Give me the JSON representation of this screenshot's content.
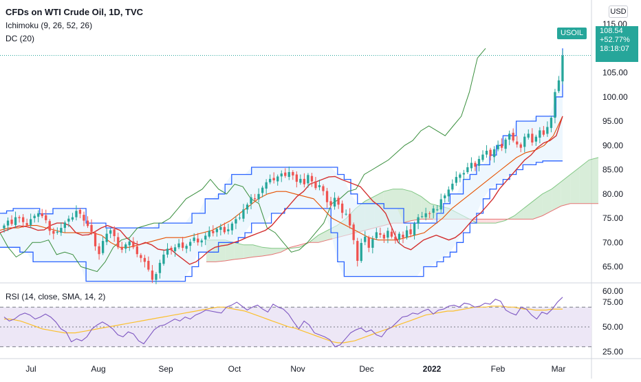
{
  "header": {
    "title": "CFDs on WTI Crude Oil, 1D, TVC",
    "ichimoku_label": "Ichimoku (9, 26, 52, 26)",
    "dc_label": "DC (20)",
    "rsi_label": "RSI (14, close, SMA, 14, 2)",
    "currency": "USD"
  },
  "price_tag": {
    "symbol": "USOIL",
    "price": "108.54",
    "change": "+52.77%",
    "countdown": "18:18:07"
  },
  "colors": {
    "up": "#26a69a",
    "down": "#ef5350",
    "donchian": "#2962ff",
    "donchian_fill": "#e3f2fd",
    "tenkan": "#d32f2f",
    "kijun": "#e65100",
    "chikou": "#388e3c",
    "cloud_bull": "#c8e6c9",
    "cloud_bear": "#ffcdd2",
    "rsi_line": "#7e57c2",
    "rsi_ma": "#fbc02d",
    "rsi_band": "#ede7f6"
  },
  "chart_data": [
    {
      "type": "candlestick",
      "title": "CFDs on WTI Crude Oil, 1D, TVC",
      "ylim": [
        58,
        115
      ],
      "y_ticks": [
        "115.00",
        "110.00",
        "105.00",
        "100.00",
        "95.00",
        "90.00",
        "85.00",
        "80.00",
        "75.00",
        "70.00",
        "65.00",
        "60.00"
      ],
      "x_ticks": [
        "Jul",
        "Aug",
        "Sep",
        "Oct",
        "Nov",
        "Dec",
        "2022",
        "Feb",
        "Mar"
      ],
      "last_price": 108.54,
      "closes": [
        73.5,
        74.5,
        73.8,
        75.2,
        75.0,
        74.2,
        73.6,
        74.8,
        75.5,
        76.0,
        75.4,
        74.6,
        72.4,
        71.8,
        72.2,
        73.0,
        74.1,
        74.9,
        75.2,
        76.5,
        75.9,
        74.5,
        73.4,
        72.2,
        69.2,
        67.6,
        70.3,
        71.8,
        72.5,
        71.3,
        69.0,
        68.5,
        69.6,
        70.2,
        69.0,
        67.6,
        66.8,
        66.0,
        64.4,
        62.3,
        63.5,
        65.8,
        67.5,
        68.7,
        68.4,
        69.0,
        69.8,
        68.9,
        69.3,
        70.1,
        71.0,
        70.0,
        70.4,
        71.4,
        72.4,
        71.9,
        72.8,
        73.2,
        72.1,
        72.7,
        73.9,
        74.8,
        75.1,
        76.8,
        77.8,
        79.3,
        78.9,
        80.0,
        81.3,
        82.4,
        83.1,
        82.8,
        83.6,
        84.2,
        83.7,
        84.5,
        83.8,
        82.5,
        83.1,
        82.0,
        83.9,
        82.6,
        81.2,
        81.8,
        80.6,
        78.3,
        77.6,
        79.2,
        77.8,
        76.1,
        75.9,
        73.5,
        70.5,
        66.2,
        69.9,
        71.2,
        68.9,
        70.7,
        72.1,
        71.6,
        70.8,
        72.4,
        71.2,
        70.4,
        71.8,
        71.0,
        72.5,
        71.7,
        73.9,
        75.2,
        75.4,
        76.0,
        75.9,
        77.0,
        76.8,
        78.9,
        79.7,
        80.9,
        82.1,
        83.5,
        84.0,
        84.3,
        85.5,
        86.4,
        85.6,
        87.2,
        88.1,
        88.9,
        87.8,
        89.2,
        90.1,
        89.5,
        91.2,
        92.4,
        91.0,
        90.2,
        89.5,
        91.8,
        92.4,
        90.6,
        91.8,
        93.1,
        92.2,
        93.8,
        95.7,
        101.0,
        103.4,
        108.5
      ],
      "series": [
        {
          "name": "Donchian upper",
          "values": [
            76.0,
            76.5,
            77.0,
            77.0,
            77.0,
            77.0,
            75.9,
            75.9,
            77.0,
            77.0,
            77.0,
            77.0,
            77.0,
            74.0,
            74.0,
            74.0,
            73.0,
            73.0,
            73.0,
            73.0,
            73.0,
            73.0,
            73.0,
            73.0,
            74.0,
            74.0,
            74.0,
            74.0,
            74.0,
            76.0,
            76.0,
            79.0,
            79.0,
            80.0,
            82.0,
            84.0,
            84.0,
            84.0,
            85.5,
            85.5,
            85.5,
            85.5,
            85.5,
            85.5,
            85.5,
            85.5,
            85.5,
            85.5,
            85.5,
            85.5,
            85.5,
            84.0,
            83.0,
            80.0,
            78.0,
            78.0,
            78.0,
            78.0,
            77.0,
            77.0,
            77.0,
            74.0,
            74.0,
            74.0,
            74.0,
            74.0,
            76.0,
            78.0,
            80.0,
            80.0,
            83.0,
            84.0,
            86.0,
            86.0,
            88.0,
            90.0,
            92.0,
            92.0,
            95.0,
            95.0,
            95.0,
            96.0,
            96.0,
            96.0,
            100.0,
            110.0
          ]
        },
        {
          "name": "Donchian lower",
          "values": [
            69.0,
            69.0,
            69.0,
            68.0,
            68.0,
            66.0,
            66.0,
            66.0,
            66.0,
            66.0,
            66.0,
            66.0,
            66.0,
            62.0,
            62.0,
            62.0,
            62.0,
            62.0,
            62.0,
            62.0,
            62.0,
            62.0,
            62.0,
            62.0,
            62.0,
            62.0,
            62.0,
            62.0,
            63.0,
            65.0,
            68.0,
            68.0,
            68.0,
            70.0,
            70.0,
            70.0,
            71.0,
            72.0,
            74.0,
            74.0,
            74.0,
            76.0,
            76.0,
            77.0,
            77.0,
            77.0,
            77.0,
            77.0,
            77.0,
            77.0,
            72.0,
            66.0,
            63.0,
            63.0,
            63.0,
            63.0,
            63.0,
            63.0,
            63.0,
            63.0,
            63.0,
            63.0,
            63.0,
            63.0,
            65.0,
            65.0,
            66.0,
            67.0,
            68.0,
            70.0,
            72.0,
            74.0,
            76.0,
            79.0,
            81.0,
            82.0,
            83.0,
            84.0,
            85.0,
            86.0,
            86.0,
            86.5,
            86.8,
            86.8,
            86.8,
            86.8
          ]
        },
        {
          "name": "Tenkan-sen",
          "values": [
            72.0,
            72.5,
            73.0,
            73.4,
            73.3,
            73.0,
            72.5,
            72.6,
            73.5,
            74.0,
            74.0,
            73.5,
            72.0,
            71.5,
            71.6,
            72.2,
            73.0,
            73.5,
            73.0,
            72.5,
            71.0,
            70.0,
            69.5,
            70.0,
            69.5,
            68.6,
            68.4,
            68.6,
            67.5,
            66.5,
            65.5,
            66.0,
            67.0,
            68.2,
            69.0,
            69.3,
            69.5,
            70.0,
            70.4,
            71.0,
            71.5,
            72.0,
            72.5,
            73.5,
            75.0,
            76.5,
            78.0,
            79.5,
            80.5,
            82.0,
            82.5,
            83.0,
            83.5,
            83.6,
            83.0,
            82.5,
            82.0,
            81.5,
            80.0,
            78.5,
            77.5,
            76.0,
            73.0,
            70.0,
            69.0,
            68.5,
            69.5,
            70.5,
            71.0,
            71.5,
            71.0,
            70.5,
            71.0,
            72.0,
            73.5,
            75.0,
            76.0,
            77.5,
            79.0,
            81.0,
            82.5,
            84.0,
            85.5,
            87.0,
            88.0,
            89.5,
            90.5,
            91.0,
            92.0,
            96.0
          ]
        },
        {
          "name": "Kijun-sen",
          "values": [
            72.5,
            73.0,
            73.0,
            73.5,
            73.5,
            73.0,
            72.5,
            72.0,
            72.0,
            72.0,
            72.0,
            71.5,
            70.0,
            69.0,
            69.0,
            69.5,
            70.0,
            70.5,
            71.0,
            71.0,
            71.0,
            71.5,
            72.0,
            72.5,
            73.5,
            74.5,
            76.0,
            77.5,
            79.0,
            80.0,
            80.5,
            80.5,
            80.0,
            79.5,
            79.0,
            77.0,
            75.0,
            74.0,
            73.0,
            72.0,
            71.0,
            70.5,
            70.5,
            70.5,
            71.0,
            71.5,
            72.0,
            73.5,
            75.0,
            77.0,
            78.5,
            80.0,
            81.5,
            83.0,
            84.5,
            86.0,
            87.5,
            88.5,
            89.0,
            90.0,
            92.0,
            96.0
          ]
        },
        {
          "name": "Chikou span",
          "values": [
            72.0,
            69.0,
            67.0,
            68.0,
            70.0,
            70.0,
            70.5,
            67.5,
            68.0,
            67.5,
            65.0,
            64.5,
            64.0,
            66.0,
            69.0,
            70.5,
            71.0,
            73.0,
            73.5,
            74.0,
            74.0,
            75.0,
            77.0,
            79.0,
            80.0,
            81.0,
            83.0,
            81.0,
            80.0,
            82.0,
            81.5,
            79.0,
            78.0,
            73.0,
            72.0,
            70.0,
            68.0,
            68.5,
            70.0,
            72.0,
            74.0,
            78.0,
            79.0,
            80.5,
            81.0,
            84.0,
            85.0,
            86.0,
            87.0,
            88.5,
            90.0,
            91.0,
            93.0,
            94.0,
            93.0,
            92.0,
            94.0,
            96.0,
            101.0,
            108.0,
            110.0
          ]
        },
        {
          "name": "Senkou A",
          "values": [
            70.5,
            70.5,
            70.5,
            70.0,
            69.5,
            69.5,
            69.0,
            68.8,
            68.8,
            68.8,
            69.0,
            70.0,
            71.5,
            72.5,
            73.5,
            75.0,
            77.0,
            78.5,
            79.5,
            80.5,
            81.0,
            81.0,
            80.5,
            79.5,
            78.0,
            77.5,
            77.0,
            76.0,
            75.0,
            74.0,
            74.0,
            74.0,
            74.5,
            75.5,
            77.0,
            78.5,
            80.0,
            81.0,
            82.5,
            84.0,
            85.5,
            87.0,
            87.5
          ]
        },
        {
          "name": "Senkou B",
          "values": [
            66.0,
            66.0,
            66.2,
            66.5,
            66.7,
            67.0,
            67.2,
            67.5,
            68.0,
            69.0,
            69.5,
            70.0,
            70.0,
            70.5,
            71.0,
            71.5,
            72.0,
            72.5,
            73.0,
            73.5,
            74.0,
            74.0,
            74.5,
            74.8,
            74.8,
            74.8,
            74.8,
            74.8,
            74.8,
            74.8,
            74.8,
            74.8,
            74.8,
            74.8,
            74.8,
            74.8,
            75.5,
            76.5,
            77.5,
            78.0,
            78.0,
            78.0,
            78.0
          ]
        }
      ]
    },
    {
      "type": "line",
      "title": "RSI (14, close, SMA, 14, 2)",
      "ylim": [
        20,
        82
      ],
      "y_ticks": [
        "75.00",
        "50.00",
        "25.00"
      ],
      "levels": [
        70,
        50,
        30
      ],
      "series": [
        {
          "name": "RSI",
          "values": [
            60,
            56,
            58,
            62,
            64,
            62,
            58,
            60,
            63,
            60,
            55,
            48,
            45,
            35,
            38,
            36,
            40,
            48,
            52,
            55,
            52,
            48,
            42,
            40,
            45,
            43,
            36,
            33,
            40,
            47,
            51,
            52,
            55,
            58,
            56,
            60,
            58,
            62,
            64,
            67,
            66,
            65,
            64,
            70,
            72,
            75,
            71,
            67,
            70,
            72,
            68,
            65,
            73,
            70,
            68,
            63,
            55,
            48,
            56,
            52,
            44,
            42,
            40,
            37,
            30,
            32,
            38,
            44,
            47,
            49,
            45,
            47,
            42,
            40,
            47,
            50,
            55,
            60,
            61,
            64,
            63,
            66,
            68,
            63,
            67,
            68,
            71,
            72,
            70,
            74,
            73,
            70,
            71,
            74,
            73,
            78,
            76,
            67,
            64,
            62,
            70,
            68,
            62,
            58,
            65,
            63,
            68,
            75,
            80
          ]
        },
        {
          "name": "RSI-based MA",
          "values": [
            58,
            58,
            57,
            56,
            54,
            52,
            50,
            48,
            47,
            46,
            45,
            44,
            44,
            44,
            45,
            46,
            47,
            48,
            49,
            50,
            51,
            52,
            53,
            54,
            55,
            56,
            57,
            58,
            59,
            60,
            61,
            62,
            63,
            64,
            65,
            66,
            67,
            68,
            69,
            70,
            70,
            69,
            68,
            67,
            66,
            64,
            62,
            60,
            58,
            56,
            54,
            52,
            50,
            49,
            47,
            45,
            43,
            41,
            39,
            37,
            35,
            34,
            34,
            35,
            36,
            38,
            40,
            42,
            44,
            46,
            48,
            50,
            52,
            54,
            56,
            58,
            60,
            62,
            63,
            64,
            65,
            66,
            66,
            67,
            68,
            69,
            70,
            70,
            70,
            71,
            71,
            71,
            70,
            70,
            69,
            68,
            68,
            67,
            67,
            67,
            68,
            68,
            68
          ]
        }
      ]
    }
  ]
}
